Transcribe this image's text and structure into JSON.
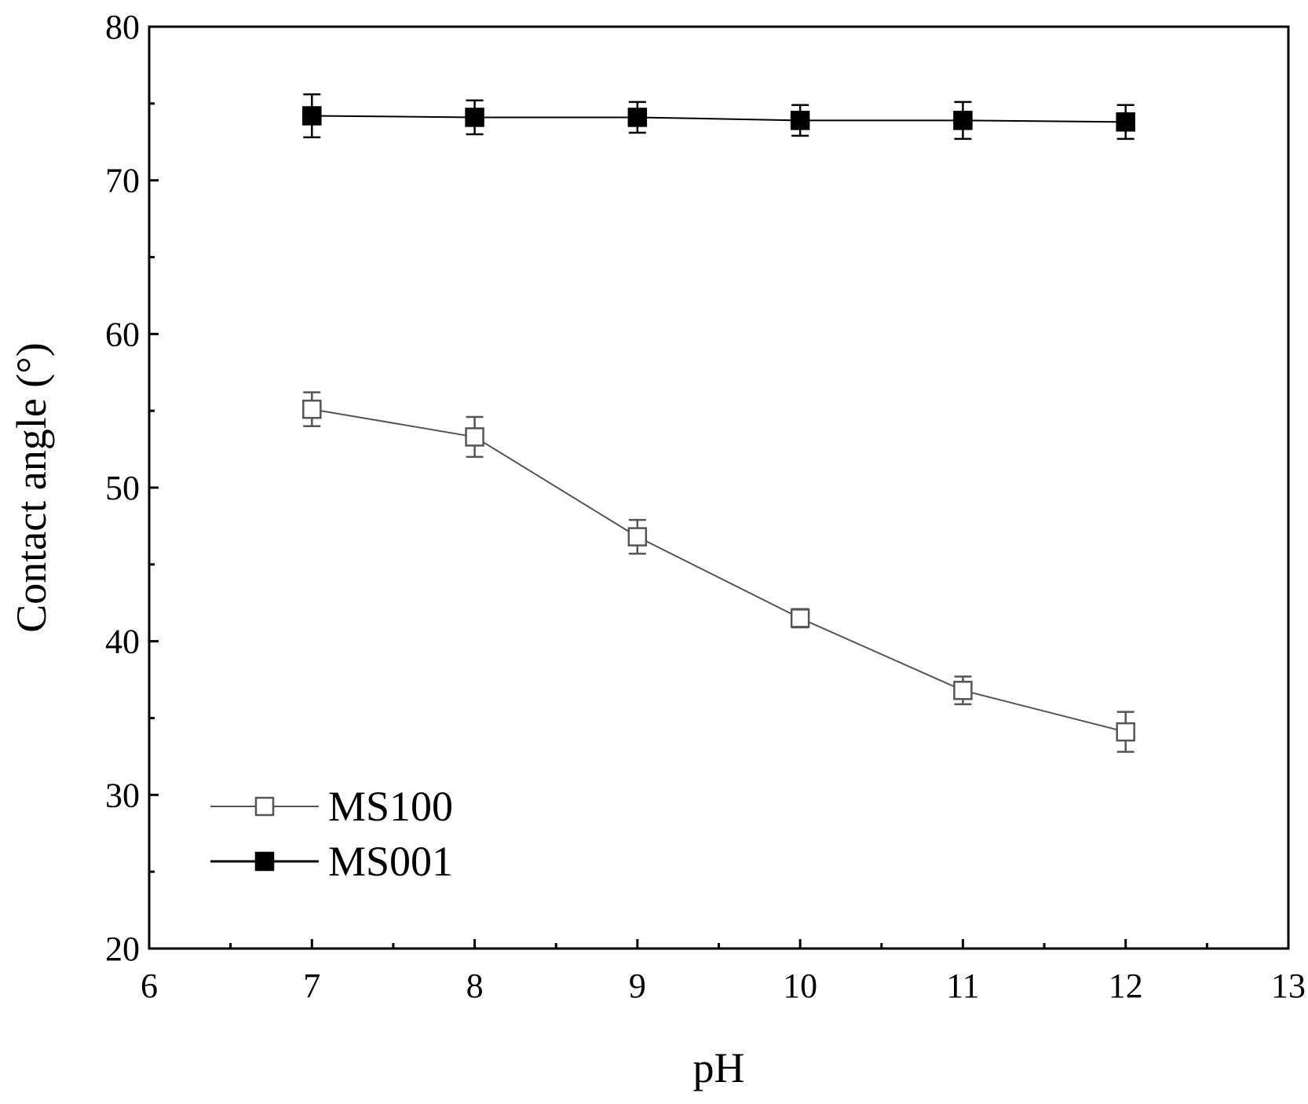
{
  "chart_data": {
    "type": "line",
    "title": "",
    "xlabel": "pH",
    "ylabel": "Contact angle (°)",
    "xlim": [
      6,
      13
    ],
    "ylim": [
      20,
      80
    ],
    "x_ticks": [
      6,
      7,
      8,
      9,
      10,
      11,
      12,
      13
    ],
    "y_ticks": [
      20,
      30,
      40,
      50,
      60,
      70,
      80
    ],
    "x_minor_ticks": [
      6.5,
      7.5,
      8.5,
      9.5,
      10.5,
      11.5,
      12.5
    ],
    "y_minor_ticks": [
      25,
      35,
      45,
      55,
      65,
      75
    ],
    "grid": false,
    "legend_position": "bottom-left",
    "series": [
      {
        "name": "MS100",
        "marker": "open-square",
        "color": "#555555",
        "x": [
          7,
          8,
          9,
          10,
          11,
          12
        ],
        "values": [
          55.1,
          53.3,
          46.8,
          41.5,
          36.8,
          34.1
        ],
        "errors": [
          1.1,
          1.3,
          1.1,
          0.6,
          0.9,
          1.3
        ]
      },
      {
        "name": "MS001",
        "marker": "filled-square",
        "color": "#000000",
        "x": [
          7,
          8,
          9,
          10,
          11,
          12
        ],
        "values": [
          74.2,
          74.1,
          74.1,
          73.9,
          73.9,
          73.8
        ],
        "errors": [
          1.4,
          1.1,
          1.0,
          1.0,
          1.2,
          1.1
        ]
      }
    ]
  }
}
